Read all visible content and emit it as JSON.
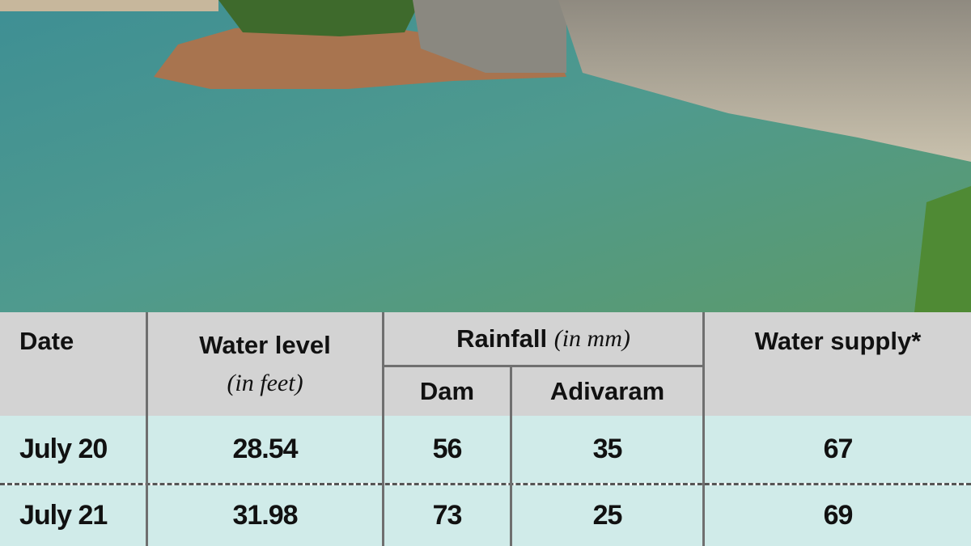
{
  "table": {
    "header": {
      "date": "Date",
      "water_level": "Water level",
      "water_level_unit": "(in feet)",
      "rainfall": "Rainfall",
      "rainfall_unit": "(in mm)",
      "dam": "Dam",
      "adivaram": "Adivaram",
      "water_supply": "Water supply*"
    },
    "rows": [
      [
        "July 20",
        "28.54",
        "56",
        "35",
        "67"
      ],
      [
        "July 21",
        "31.98",
        "73",
        "25",
        "69"
      ]
    ]
  }
}
